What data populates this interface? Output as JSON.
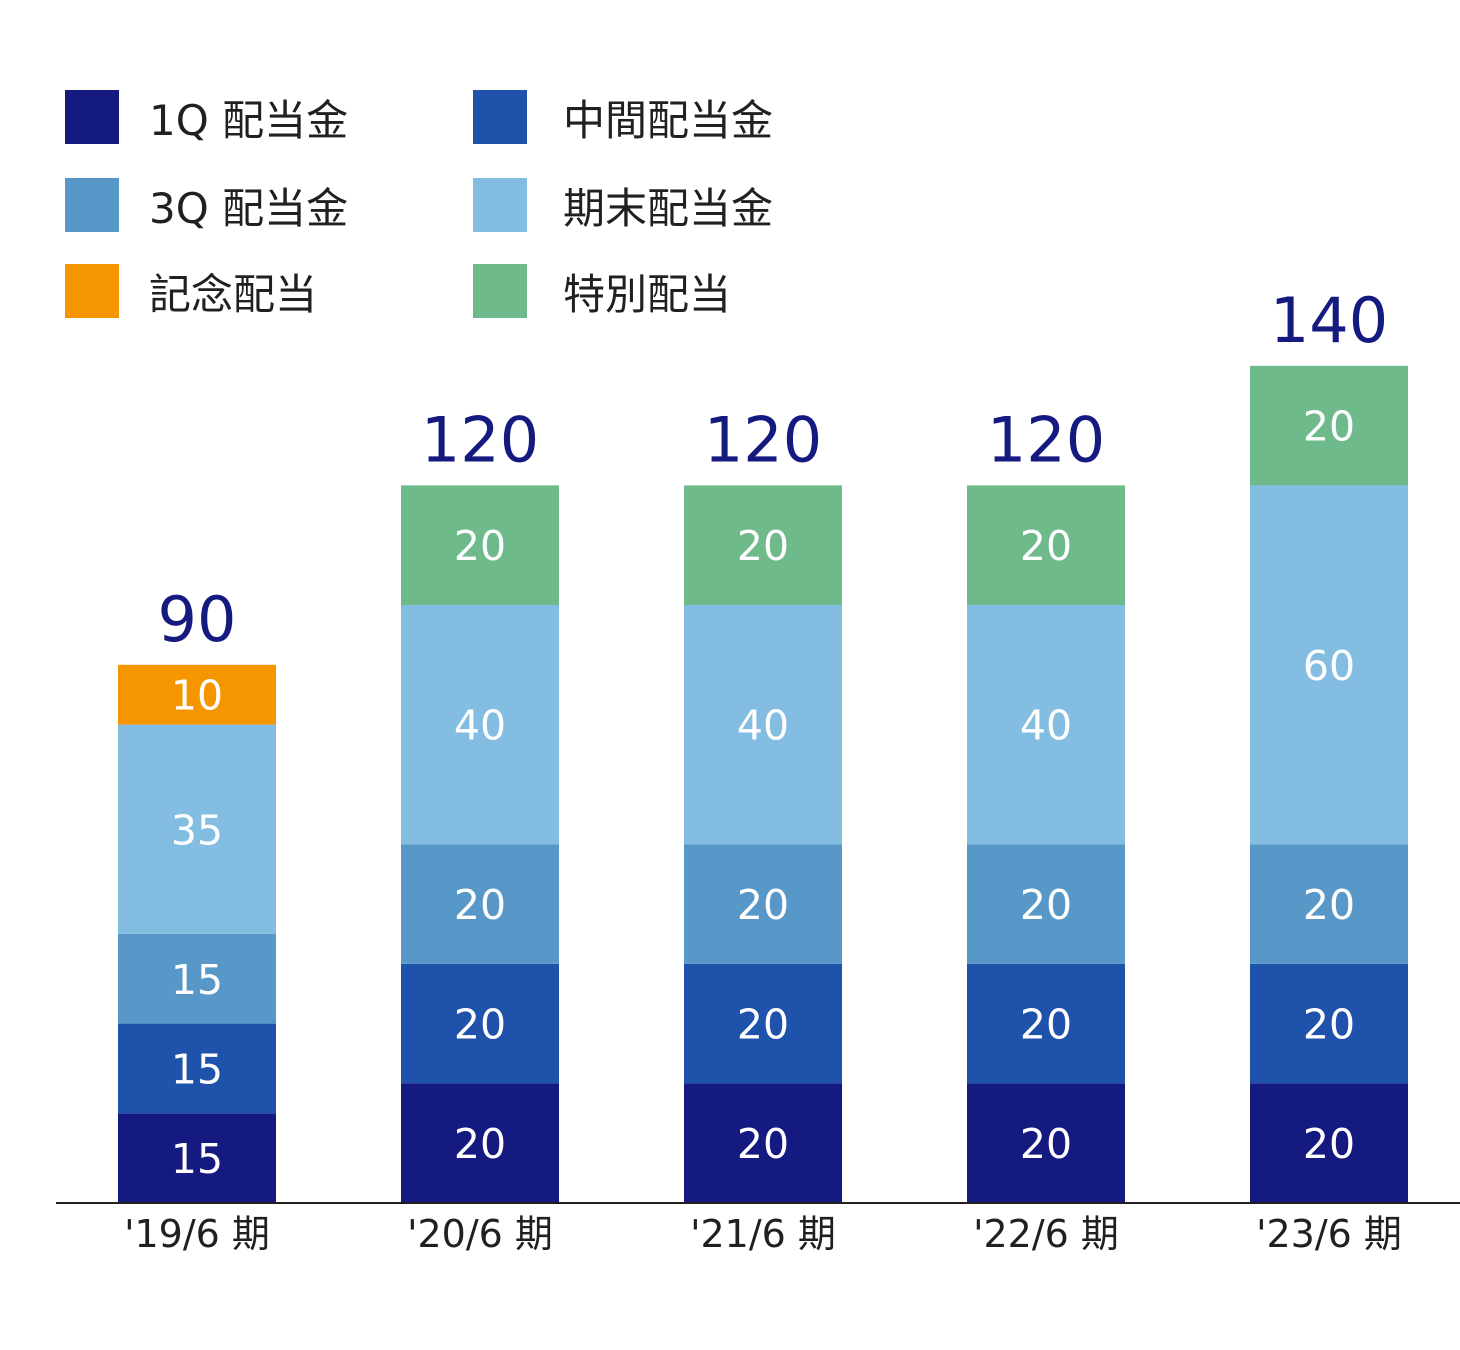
{
  "chart_data": {
    "type": "bar",
    "stacked": true,
    "categories": [
      "'19/6 期",
      "'20/6 期",
      "'21/6 期",
      "'22/6 期",
      "'23/6 期"
    ],
    "series": [
      {
        "name": "1Q 配当金",
        "color": "#141a80",
        "values": [
          15,
          20,
          20,
          20,
          20
        ]
      },
      {
        "name": "中間配当金",
        "color": "#1f52aa",
        "values": [
          15,
          20,
          20,
          20,
          20
        ]
      },
      {
        "name": "3Q 配当金",
        "color": "#5798c9",
        "values": [
          15,
          20,
          20,
          20,
          20
        ]
      },
      {
        "name": "期末配当金",
        "color": "#83bde2",
        "values": [
          35,
          40,
          40,
          40,
          60
        ]
      },
      {
        "name": "記念配当",
        "color": "#f59600",
        "values": [
          10,
          0,
          0,
          0,
          0
        ]
      },
      {
        "name": "特別配当",
        "color": "#6fba8a",
        "values": [
          0,
          20,
          20,
          20,
          20
        ]
      }
    ],
    "totals": [
      90,
      120,
      120,
      120,
      140
    ],
    "ylim": [
      0,
      140
    ],
    "grid": false,
    "legend_position": "top-left",
    "total_label_color": "#141a80"
  }
}
